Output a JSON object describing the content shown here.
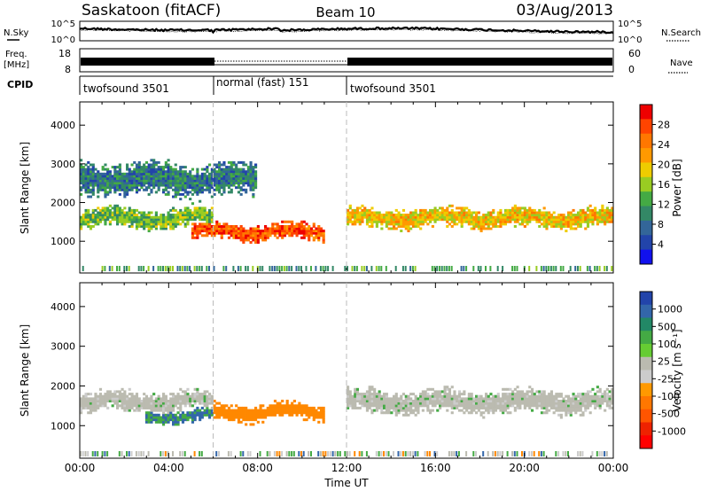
{
  "header": {
    "station": "Saskatoon (fitACF)",
    "beam": "Beam 10",
    "date": "03/Aug/2013"
  },
  "top_panels": {
    "nsky_label": "N.Sky",
    "nsearch_label": "N.Search",
    "noise_ticks": [
      "10^5",
      "10^0"
    ],
    "freq_label_1": "Freq.",
    "freq_label_2": "[MHz]",
    "freq_ticks": [
      "18",
      "8"
    ],
    "nave_label": "Nave",
    "nave_ticks": [
      "60",
      "0"
    ],
    "cpid_label": "CPID",
    "cpid_segments": [
      {
        "label": "twofsound 3501",
        "start_h": 0,
        "end_h": 6
      },
      {
        "label": "normal (fast) 151",
        "start_h": 6,
        "end_h": 12
      },
      {
        "label": "twofsound 3501",
        "start_h": 12,
        "end_h": 24
      }
    ]
  },
  "power_colorbar": {
    "label": "Power [dB]",
    "ticks": [
      "28",
      "24",
      "20",
      "16",
      "12",
      "8",
      "4"
    ],
    "colors": [
      "#ee0000",
      "#ff4400",
      "#ff7700",
      "#ff9900",
      "#eecc00",
      "#99cc22",
      "#44aa44",
      "#338866",
      "#336699",
      "#2244aa",
      "#1111ee"
    ]
  },
  "velocity_colorbar": {
    "label": "Velocity [m s⁻¹]",
    "ticks": [
      "1000",
      "500",
      "100",
      "25",
      "-25",
      "-100",
      "-500",
      "-1000"
    ],
    "colors": [
      "#2244aa",
      "#3366aa",
      "#228866",
      "#44aa44",
      "#66cc33",
      "#bbbbb0",
      "#cccccc",
      "#ff9900",
      "#ff7700",
      "#ff5500",
      "#ee2200",
      "#ff0000"
    ]
  },
  "axes": {
    "ylabel": "Slant Range [km]",
    "xlabel": "Time UT",
    "yticks": [
      1000,
      2000,
      3000,
      4000
    ],
    "xticks": [
      "00:00",
      "04:00",
      "08:00",
      "12:00",
      "16:00",
      "20:00",
      "00:00"
    ]
  },
  "chart_data": [
    {
      "type": "heatmap",
      "title": "Power",
      "xlabel": "Time UT",
      "ylabel": "Slant Range [km]",
      "xlim": [
        0,
        24
      ],
      "ylim": [
        180,
        4600
      ],
      "colorbar_label": "Power [dB]",
      "colorbar_range": [
        0,
        32
      ],
      "regions": [
        {
          "t_start": 0,
          "t_end": 6,
          "range_center": 1600,
          "range_width": 600,
          "value": 14
        },
        {
          "t_start": 5,
          "t_end": 11,
          "range_center": 1250,
          "range_width": 500,
          "value": 28
        },
        {
          "t_start": 12,
          "t_end": 24,
          "range_center": 1600,
          "range_width": 600,
          "value": 20
        },
        {
          "t_start": 0,
          "t_end": 8,
          "range_center": 2600,
          "range_width": 1000,
          "value": 8
        }
      ]
    },
    {
      "type": "heatmap",
      "title": "Velocity",
      "xlabel": "Time UT",
      "ylabel": "Slant Range [km]",
      "xlim": [
        0,
        24
      ],
      "ylim": [
        180,
        4600
      ],
      "colorbar_label": "Velocity [m s⁻¹]",
      "colorbar_range": [
        -1000,
        1000
      ],
      "regions": [
        {
          "t_start": 0,
          "t_end": 6,
          "range_center": 1600,
          "range_width": 600,
          "value": 0
        },
        {
          "t_start": 3,
          "t_end": 6,
          "range_center": 1250,
          "range_width": 400,
          "value": 100
        },
        {
          "t_start": 6,
          "t_end": 11,
          "range_center": 1350,
          "range_width": 500,
          "value": -200
        },
        {
          "t_start": 12,
          "t_end": 24,
          "range_center": 1600,
          "range_width": 700,
          "value": 0
        }
      ]
    }
  ]
}
